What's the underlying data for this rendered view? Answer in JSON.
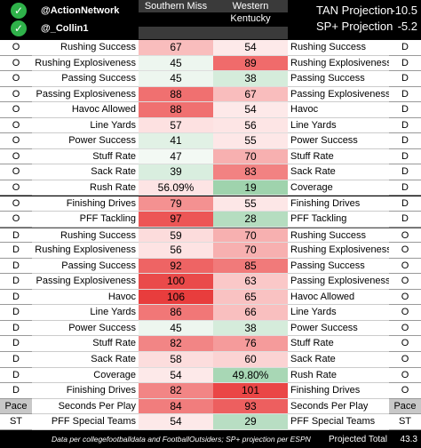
{
  "header": {
    "handle1": "@ActionNetwork",
    "handle2": "@_Collin1",
    "team1": "Southern Miss",
    "team2": "Western Kentucky",
    "tan_label": "TAN Projection",
    "tan_value": "-10.5",
    "sp_label": "SP+ Projection",
    "sp_value": "-5.2"
  },
  "colors": {
    "check": "#2fb24a",
    "header_bg": "#3a3a3a"
  },
  "rows": [
    {
      "side": "O",
      "left": "Rushing Success",
      "sm": "67",
      "wk": "54",
      "right": "Rushing Success",
      "side2": "D",
      "smc": "#f9bdbd",
      "wkc": "#fde9e9"
    },
    {
      "side": "O",
      "left": "Rushing Explosiveness",
      "sm": "45",
      "wk": "89",
      "right": "Rushing Explosiveness",
      "side2": "D",
      "smc": "#edf6ef",
      "wkc": "#f06b6b"
    },
    {
      "side": "O",
      "left": "Passing Success",
      "sm": "45",
      "wk": "38",
      "right": "Passing Success",
      "side2": "D",
      "smc": "#edf6ef",
      "wkc": "#d5ecdb"
    },
    {
      "side": "O",
      "left": "Passing Explosiveness",
      "sm": "88",
      "wk": "67",
      "right": "Passing Explosiveness",
      "side2": "D",
      "smc": "#f07070",
      "wkc": "#f9bdbd"
    },
    {
      "side": "O",
      "left": "Havoc Allowed",
      "sm": "88",
      "wk": "54",
      "right": "Havoc",
      "side2": "D",
      "smc": "#f07070",
      "wkc": "#fde9e9"
    },
    {
      "side": "O",
      "left": "Line Yards",
      "sm": "57",
      "wk": "56",
      "right": "Line Yards",
      "side2": "D",
      "smc": "#fde1e1",
      "wkc": "#fde5e5"
    },
    {
      "side": "O",
      "left": "Power Success",
      "sm": "41",
      "wk": "55",
      "right": "Power Success",
      "side2": "D",
      "smc": "#e1f1e5",
      "wkc": "#fde7e7"
    },
    {
      "side": "O",
      "left": "Stuff Rate",
      "sm": "47",
      "wk": "70",
      "right": "Stuff Rate",
      "side2": "D",
      "smc": "#f3f9f4",
      "wkc": "#f7b0b0"
    },
    {
      "side": "O",
      "left": "Sack Rate",
      "sm": "39",
      "wk": "83",
      "right": "Sack Rate",
      "side2": "D",
      "smc": "#d9eedf",
      "wkc": "#f28282"
    },
    {
      "side": "O",
      "left": "Rush Rate",
      "sm": "56.09%",
      "wk": "19",
      "right": "Coverage",
      "side2": "D",
      "smc": "#fde4e4",
      "wkc": "#9fd3ad"
    },
    {
      "side": "O",
      "left": "Finishing Drives",
      "sm": "79",
      "wk": "55",
      "right": "Finishing Drives",
      "side2": "D",
      "smc": "#f49191",
      "wkc": "#fde7e7"
    },
    {
      "side": "O",
      "left": "PFF Tackling",
      "sm": "97",
      "wk": "28",
      "right": "PFF Tackling",
      "side2": "D",
      "smc": "#ec5656",
      "wkc": "#b5ddc0"
    },
    {
      "side": "D",
      "left": "Rushing Success",
      "sm": "59",
      "wk": "70",
      "right": "Rushing Success",
      "side2": "O",
      "smc": "#fcdcdc",
      "wkc": "#f7b0b0"
    },
    {
      "side": "D",
      "left": "Rushing Explosiveness",
      "sm": "56",
      "wk": "70",
      "right": "Rushing Explosiveness",
      "side2": "O",
      "smc": "#fde3e3",
      "wkc": "#f7b0b0"
    },
    {
      "side": "D",
      "left": "Passing Success",
      "sm": "92",
      "wk": "85",
      "right": "Passing Success",
      "side2": "O",
      "smc": "#ee6464",
      "wkc": "#f17a7a"
    },
    {
      "side": "D",
      "left": "Passing Explosiveness",
      "sm": "100",
      "wk": "63",
      "right": "Passing Explosiveness",
      "side2": "O",
      "smc": "#ea4a4a",
      "wkc": "#fac8c8"
    },
    {
      "side": "D",
      "left": "Havoc",
      "sm": "106",
      "wk": "65",
      "right": "Havoc Allowed",
      "side2": "O",
      "smc": "#e83d3d",
      "wkc": "#f9c2c2"
    },
    {
      "side": "D",
      "left": "Line Yards",
      "sm": "86",
      "wk": "66",
      "right": "Line Yards",
      "side2": "O",
      "smc": "#f17777",
      "wkc": "#f9bfbf"
    },
    {
      "side": "D",
      "left": "Power Success",
      "sm": "45",
      "wk": "38",
      "right": "Power Success",
      "side2": "O",
      "smc": "#edf6ef",
      "wkc": "#d5ecdb"
    },
    {
      "side": "D",
      "left": "Stuff Rate",
      "sm": "82",
      "wk": "76",
      "right": "Stuff Rate",
      "side2": "O",
      "smc": "#f28585",
      "wkc": "#f59b9b"
    },
    {
      "side": "D",
      "left": "Sack Rate",
      "sm": "58",
      "wk": "60",
      "right": "Sack Rate",
      "side2": "O",
      "smc": "#fcdddd",
      "wkc": "#fbd3d3"
    },
    {
      "side": "D",
      "left": "Coverage",
      "sm": "54",
      "wk": "49.80%",
      "right": "Rush Rate",
      "side2": "O",
      "smc": "#fde9e9",
      "wkc": "#a8d7b5"
    },
    {
      "side": "D",
      "left": "Finishing Drives",
      "sm": "82",
      "wk": "101",
      "right": "Finishing Drives",
      "side2": "O",
      "smc": "#f28585",
      "wkc": "#ea4646"
    },
    {
      "side": "Pace",
      "left": "Seconds Per Play",
      "sm": "84",
      "wk": "93",
      "right": "Seconds Per Play",
      "side2": "Pace",
      "smc": "#f17d7d",
      "wkc": "#ed5f5f"
    },
    {
      "side": "ST",
      "left": "PFF Special Teams",
      "sm": "54",
      "wk": "29",
      "right": "PFF Special Teams",
      "side2": "ST",
      "smc": "#fde9e9",
      "wkc": "#b8dec3"
    }
  ],
  "footer": {
    "source": "Data per collegefootballdata and FootballOutsiders; SP+ projection per ESPN",
    "total_label": "Projected Total",
    "total_value": "43.3"
  }
}
